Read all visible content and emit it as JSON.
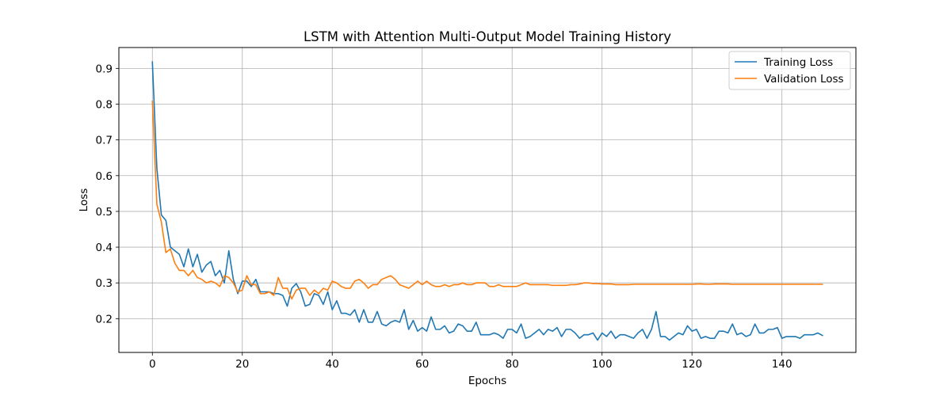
{
  "chart_data": {
    "type": "line",
    "title": "LSTM with Attention Multi-Output Model Training History",
    "xlabel": "Epochs",
    "ylabel": "Loss",
    "xlim": [
      -7.45,
      156.45
    ],
    "ylim": [
      0.1055,
      0.9584
    ],
    "xticks": [
      0,
      20,
      40,
      60,
      80,
      100,
      120,
      140
    ],
    "xtick_labels": [
      "0",
      "20",
      "40",
      "60",
      "80",
      "100",
      "120",
      "140"
    ],
    "yticks": [
      0.2,
      0.3,
      0.4,
      0.5,
      0.6,
      0.7,
      0.8,
      0.9
    ],
    "ytick_labels": [
      "0.2",
      "0.3",
      "0.4",
      "0.5",
      "0.6",
      "0.7",
      "0.8",
      "0.9"
    ],
    "grid": true,
    "legend_position": "top-right",
    "series": [
      {
        "name": "Training Loss",
        "color": "#1f77b4",
        "x": [
          0,
          1,
          2,
          3,
          4,
          5,
          6,
          7,
          8,
          9,
          10,
          11,
          12,
          13,
          14,
          15,
          16,
          17,
          18,
          19,
          20,
          21,
          22,
          23,
          24,
          25,
          26,
          27,
          28,
          29,
          30,
          31,
          32,
          33,
          34,
          35,
          36,
          37,
          38,
          39,
          40,
          41,
          42,
          43,
          44,
          45,
          46,
          47,
          48,
          49,
          50,
          51,
          52,
          53,
          54,
          55,
          56,
          57,
          58,
          59,
          60,
          61,
          62,
          63,
          64,
          65,
          66,
          67,
          68,
          69,
          70,
          71,
          72,
          73,
          74,
          75,
          76,
          77,
          78,
          79,
          80,
          81,
          82,
          83,
          84,
          85,
          86,
          87,
          88,
          89,
          90,
          91,
          92,
          93,
          94,
          95,
          96,
          97,
          98,
          99,
          100,
          101,
          102,
          103,
          104,
          105,
          106,
          107,
          108,
          109,
          110,
          111,
          112,
          113,
          114,
          115,
          116,
          117,
          118,
          119,
          120,
          121,
          122,
          123,
          124,
          125,
          126,
          127,
          128,
          129,
          130,
          131,
          132,
          133,
          134,
          135,
          136,
          137,
          138,
          139,
          140,
          141,
          142,
          143,
          144,
          145,
          146,
          147,
          148,
          149
        ],
        "values": [
          0.918,
          0.62,
          0.49,
          0.475,
          0.4,
          0.39,
          0.38,
          0.345,
          0.395,
          0.345,
          0.38,
          0.33,
          0.35,
          0.36,
          0.32,
          0.335,
          0.3,
          0.39,
          0.31,
          0.27,
          0.305,
          0.305,
          0.29,
          0.31,
          0.275,
          0.275,
          0.275,
          0.27,
          0.27,
          0.265,
          0.235,
          0.285,
          0.298,
          0.275,
          0.235,
          0.24,
          0.27,
          0.265,
          0.24,
          0.275,
          0.225,
          0.25,
          0.215,
          0.215,
          0.21,
          0.225,
          0.19,
          0.225,
          0.19,
          0.19,
          0.22,
          0.185,
          0.18,
          0.19,
          0.195,
          0.19,
          0.225,
          0.17,
          0.195,
          0.165,
          0.175,
          0.165,
          0.205,
          0.17,
          0.17,
          0.18,
          0.16,
          0.165,
          0.185,
          0.18,
          0.165,
          0.165,
          0.19,
          0.155,
          0.155,
          0.155,
          0.16,
          0.155,
          0.145,
          0.17,
          0.17,
          0.16,
          0.185,
          0.145,
          0.15,
          0.16,
          0.17,
          0.155,
          0.17,
          0.165,
          0.175,
          0.15,
          0.17,
          0.17,
          0.16,
          0.145,
          0.155,
          0.155,
          0.16,
          0.14,
          0.16,
          0.15,
          0.165,
          0.145,
          0.155,
          0.155,
          0.15,
          0.145,
          0.16,
          0.17,
          0.145,
          0.17,
          0.22,
          0.15,
          0.15,
          0.14,
          0.15,
          0.16,
          0.155,
          0.18,
          0.165,
          0.17,
          0.145,
          0.15,
          0.145,
          0.145,
          0.165,
          0.165,
          0.16,
          0.185,
          0.155,
          0.16,
          0.15,
          0.155,
          0.185,
          0.16,
          0.16,
          0.17,
          0.17,
          0.175,
          0.145,
          0.15,
          0.15,
          0.15,
          0.145,
          0.155,
          0.155,
          0.155,
          0.16,
          0.153
        ]
      },
      {
        "name": "Validation Loss",
        "color": "#ff7f0e",
        "x": [
          0,
          1,
          2,
          3,
          4,
          5,
          6,
          7,
          8,
          9,
          10,
          11,
          12,
          13,
          14,
          15,
          16,
          17,
          18,
          19,
          20,
          21,
          22,
          23,
          24,
          25,
          26,
          27,
          28,
          29,
          30,
          31,
          32,
          33,
          34,
          35,
          36,
          37,
          38,
          39,
          40,
          41,
          42,
          43,
          44,
          45,
          46,
          47,
          48,
          49,
          50,
          51,
          52,
          53,
          54,
          55,
          56,
          57,
          58,
          59,
          60,
          61,
          62,
          63,
          64,
          65,
          66,
          67,
          68,
          69,
          70,
          71,
          72,
          73,
          74,
          75,
          76,
          77,
          78,
          79,
          80,
          81,
          82,
          83,
          84,
          85,
          86,
          87,
          88,
          89,
          90,
          91,
          92,
          93,
          94,
          95,
          96,
          97,
          98,
          99,
          100,
          101,
          102,
          103,
          104,
          105,
          106,
          107,
          108,
          109,
          110,
          111,
          112,
          113,
          114,
          115,
          116,
          117,
          118,
          119,
          120,
          121,
          122,
          123,
          124,
          125,
          126,
          127,
          128,
          129,
          130,
          131,
          132,
          133,
          134,
          135,
          136,
          137,
          138,
          139,
          140,
          141,
          142,
          143,
          144,
          145,
          146,
          147,
          148,
          149
        ],
        "values": [
          0.808,
          0.52,
          0.47,
          0.385,
          0.395,
          0.355,
          0.335,
          0.335,
          0.32,
          0.335,
          0.315,
          0.31,
          0.3,
          0.305,
          0.3,
          0.29,
          0.32,
          0.315,
          0.3,
          0.275,
          0.28,
          0.32,
          0.295,
          0.295,
          0.27,
          0.27,
          0.275,
          0.265,
          0.315,
          0.285,
          0.285,
          0.255,
          0.28,
          0.285,
          0.285,
          0.265,
          0.28,
          0.27,
          0.285,
          0.28,
          0.305,
          0.3,
          0.29,
          0.285,
          0.285,
          0.305,
          0.31,
          0.3,
          0.285,
          0.295,
          0.295,
          0.31,
          0.315,
          0.32,
          0.31,
          0.295,
          0.29,
          0.285,
          0.295,
          0.305,
          0.295,
          0.305,
          0.295,
          0.29,
          0.29,
          0.295,
          0.29,
          0.295,
          0.295,
          0.3,
          0.295,
          0.295,
          0.3,
          0.3,
          0.3,
          0.29,
          0.29,
          0.295,
          0.29,
          0.29,
          0.29,
          0.29,
          0.295,
          0.3,
          0.295,
          0.295,
          0.295,
          0.295,
          0.295,
          0.293,
          0.293,
          0.293,
          0.293,
          0.295,
          0.295,
          0.297,
          0.3,
          0.3,
          0.298,
          0.298,
          0.297,
          0.297,
          0.297,
          0.295,
          0.295,
          0.295,
          0.295,
          0.296,
          0.296,
          0.296,
          0.296,
          0.296,
          0.296,
          0.296,
          0.296,
          0.296,
          0.296,
          0.296,
          0.296,
          0.296,
          0.296,
          0.297,
          0.297,
          0.296,
          0.296,
          0.297,
          0.297,
          0.297,
          0.297,
          0.296,
          0.296,
          0.296,
          0.296,
          0.296,
          0.296,
          0.296,
          0.296,
          0.296,
          0.296,
          0.296,
          0.296,
          0.296,
          0.296,
          0.296,
          0.296,
          0.296,
          0.296,
          0.296,
          0.296,
          0.296
        ]
      }
    ]
  }
}
